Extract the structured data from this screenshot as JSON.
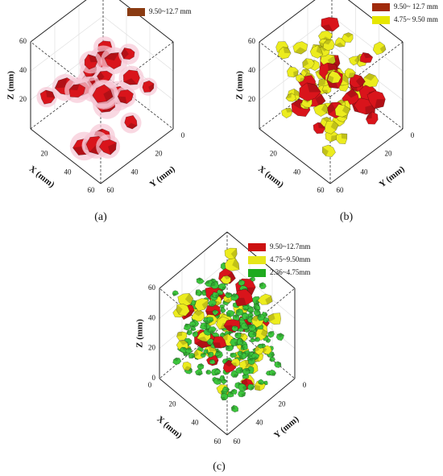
{
  "panels": [
    {
      "label": "(a)",
      "legend": [
        {
          "text": "9.50~12.7 mm",
          "color": "#8a3b12"
        }
      ],
      "particle_colors": [
        "#d9141b"
      ],
      "axes": {
        "x_title": "X (mm)",
        "y_title": "Y (mm)",
        "z_title": "Z (mm)",
        "x_ticks": [
          "20",
          "40",
          "60"
        ],
        "y_ticks": [
          "0",
          "20",
          "40",
          "60"
        ],
        "z_ticks": [
          "20",
          "40",
          "60"
        ]
      }
    },
    {
      "label": "(b)",
      "legend": [
        {
          "text": "9.50~ 12.7 mm",
          "color": "#a02a0c"
        },
        {
          "text": "4.75~ 9.50 mm",
          "color": "#e6e600"
        }
      ],
      "particle_colors": [
        "#d9141b",
        "#ecec1e"
      ],
      "axes": {
        "x_title": "X (mm)",
        "y_title": "Y (mm)",
        "z_title": "Z (mm)",
        "x_ticks": [
          "20",
          "40",
          "60"
        ],
        "y_ticks": [
          "0",
          "20",
          "40",
          "60"
        ],
        "z_ticks": [
          "20",
          "40",
          "60"
        ]
      }
    },
    {
      "label": "(c)",
      "legend": [
        {
          "text": "9.50~12.7mm",
          "color": "#cc1111"
        },
        {
          "text": "4.75~9.50mm",
          "color": "#e6e61a"
        },
        {
          "text": "2.36~4.75mm",
          "color": "#1faa1f"
        }
      ],
      "particle_colors": [
        "#d9141b",
        "#ecec1e",
        "#3cc43c"
      ],
      "axes": {
        "x_title": "X (mm)",
        "y_title": "Y (mm)",
        "z_title": "Z (mm)",
        "x_ticks": [
          "0",
          "20",
          "40",
          "60"
        ],
        "y_ticks": [
          "0",
          "20",
          "40",
          "60"
        ],
        "z_ticks": [
          "0",
          "20",
          "40",
          "60"
        ]
      }
    }
  ]
}
